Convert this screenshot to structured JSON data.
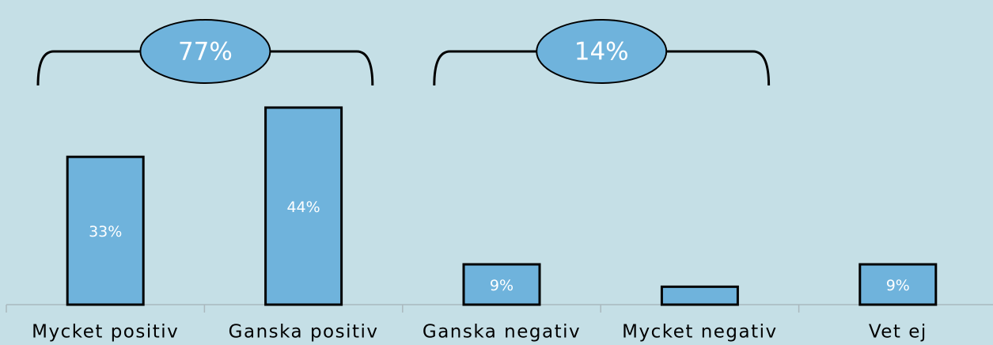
{
  "chart_data": {
    "type": "bar",
    "categories": [
      "Mycket positiv",
      "Ganska positiv",
      "Ganska negativ",
      "Mycket negativ",
      "Vet ej"
    ],
    "values": [
      33,
      44,
      9,
      4,
      9
    ],
    "value_labels": [
      "33%",
      "44%",
      "9%",
      null,
      "9%"
    ],
    "color": "#6fb3dc",
    "ylim": [
      0,
      50
    ],
    "annotations": [
      "77%",
      "14%"
    ]
  }
}
